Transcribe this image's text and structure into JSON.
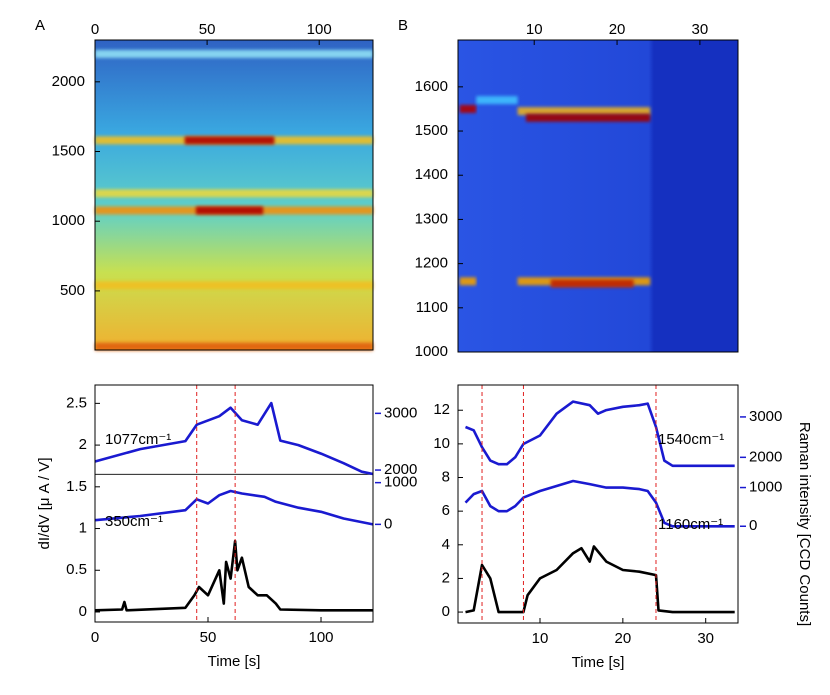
{
  "chart_data": [
    {
      "type": "heatmap",
      "label": "A",
      "xlim": [
        0,
        124
      ],
      "xticks": [
        0,
        50,
        100
      ],
      "ylim": [
        76,
        2300
      ],
      "yticks": [
        500,
        1000,
        1500,
        2000
      ],
      "bands": [
        {
          "y": 2200,
          "x": [
            0,
            124
          ],
          "color": "#8fe0f5"
        },
        {
          "y": 1580,
          "x": [
            0,
            124
          ],
          "color": "#f0c020"
        },
        {
          "y": 1580,
          "x": [
            40,
            80
          ],
          "color": "#b00000"
        },
        {
          "y": 1200,
          "x": [
            0,
            124
          ],
          "color": "#e8d840"
        },
        {
          "y": 1077,
          "x": [
            0,
            124
          ],
          "color": "#f09010"
        },
        {
          "y": 1077,
          "x": [
            45,
            75
          ],
          "color": "#b00000"
        },
        {
          "y": 540,
          "x": [
            0,
            124
          ],
          "color": "#f0c020"
        },
        {
          "y": 100,
          "x": [
            0,
            124
          ],
          "color": "#e06010"
        }
      ]
    },
    {
      "type": "heatmap",
      "label": "B",
      "xlim": [
        0.8,
        34.6
      ],
      "xticks": [
        10,
        20,
        30
      ],
      "ylim": [
        1000,
        1706
      ],
      "yticks": [
        1000,
        1100,
        1200,
        1300,
        1400,
        1500,
        1600
      ],
      "bands": [
        {
          "y": 1550,
          "x": [
            1,
            3
          ],
          "color": "#b00000"
        },
        {
          "y": 1570,
          "x": [
            3,
            8
          ],
          "color": "#40c0ff"
        },
        {
          "y": 1545,
          "x": [
            8,
            24
          ],
          "color": "#e8b020"
        },
        {
          "y": 1530,
          "x": [
            9,
            24
          ],
          "color": "#a00000"
        },
        {
          "y": 1160,
          "x": [
            1,
            3
          ],
          "color": "#f0a000"
        },
        {
          "y": 1160,
          "x": [
            8,
            24
          ],
          "color": "#f0a000"
        },
        {
          "y": 1155,
          "x": [
            12,
            22
          ],
          "color": "#c02000"
        }
      ]
    },
    {
      "type": "line",
      "xlabel": "Time [s]",
      "ylabel": "dI/dV [μ A / V]",
      "xlim": [
        0,
        123
      ],
      "xticks": [
        0,
        50,
        100
      ],
      "ylim": [
        -0.12,
        2.72
      ],
      "yticks": [
        0,
        0.5,
        1,
        1.5,
        2,
        2.5
      ],
      "y2lim": [
        -680,
        3500
      ],
      "y2ticks": [
        2000,
        3000
      ],
      "y3lim": [
        -2340,
        3340
      ],
      "y3ticks": [
        0,
        1000
      ],
      "vlines": [
        45,
        62
      ],
      "hlines": [
        1.65
      ],
      "series": [
        {
          "name": "1077cm⁻¹",
          "color": "#1a1ad0",
          "axis": "y2",
          "x": [
            0,
            20,
            40,
            45,
            55,
            60,
            65,
            72,
            78,
            82,
            90,
            100,
            110,
            118,
            123
          ],
          "values": [
            2150,
            2370,
            2510,
            2800,
            2950,
            3100,
            2880,
            2800,
            3180,
            2520,
            2440,
            2290,
            2120,
            1970,
            1930
          ]
        },
        {
          "name": "350cm⁻¹",
          "color": "#1a1ad0",
          "axis": "y3",
          "x": [
            0,
            20,
            40,
            45,
            50,
            55,
            60,
            65,
            75,
            80,
            90,
            100,
            110,
            123
          ],
          "values": [
            100,
            200,
            340,
            600,
            500,
            700,
            800,
            740,
            660,
            540,
            400,
            300,
            140,
            0
          ]
        },
        {
          "color": "#000000",
          "x": [
            0,
            12,
            13,
            14,
            40,
            44,
            46,
            50,
            55,
            57,
            58,
            60,
            62,
            63,
            65,
            68,
            72,
            76,
            80,
            82,
            100,
            123
          ],
          "values": [
            0.02,
            0.03,
            0.12,
            0.02,
            0.05,
            0.2,
            0.3,
            0.2,
            0.5,
            0.1,
            0.6,
            0.4,
            0.85,
            0.5,
            0.65,
            0.3,
            0.2,
            0.2,
            0.1,
            0.03,
            0.02,
            0.02
          ]
        }
      ]
    },
    {
      "type": "line",
      "xlabel": "Time [s]",
      "y2label": "Raman intensity [CCD Counts]",
      "xlim": [
        0.1,
        33.9
      ],
      "xticks": [
        10,
        20,
        30
      ],
      "ylim": [
        -0.65,
        13.5
      ],
      "yticks": [
        0,
        2,
        4,
        6,
        8,
        10,
        12
      ],
      "y2lim": [
        -2100,
        3790
      ],
      "y2ticks": [
        2000,
        3000
      ],
      "y3lim": [
        -2500,
        3650
      ],
      "y3ticks": [
        0,
        1000
      ],
      "vlines": [
        3,
        8,
        24
      ],
      "series": [
        {
          "name": "1540cm⁻¹",
          "color": "#1a1ad0",
          "axis": "y2",
          "x": [
            1,
            2,
            3,
            4,
            5,
            6,
            7,
            8,
            10,
            12,
            14,
            16,
            17,
            18,
            20,
            22,
            23,
            24,
            25,
            26,
            33.5
          ],
          "values": [
            2750,
            2670,
            2250,
            1920,
            1830,
            1830,
            2000,
            2330,
            2540,
            3080,
            3380,
            3290,
            3080,
            3170,
            3250,
            3290,
            3330,
            2750,
            1920,
            1790,
            1790
          ]
        },
        {
          "name": "1160cm⁻¹",
          "color": "#1a1ad0",
          "axis": "y3",
          "x": [
            1,
            2,
            3,
            4,
            5,
            6,
            7,
            8,
            10,
            12,
            14,
            16,
            18,
            20,
            22,
            23,
            24,
            25,
            26,
            33.5
          ],
          "values": [
            610,
            830,
            910,
            520,
            390,
            390,
            520,
            740,
            910,
            1040,
            1170,
            1090,
            1000,
            1000,
            960,
            910,
            610,
            90,
            0,
            0
          ]
        },
        {
          "color": "#000000",
          "x": [
            1,
            2,
            3,
            4,
            5,
            8,
            8.5,
            10,
            12,
            14,
            15,
            16,
            16.5,
            18,
            20,
            22,
            24,
            24.3,
            26,
            33.5
          ],
          "values": [
            0,
            0.1,
            2.8,
            2,
            0,
            0,
            1,
            2,
            2.5,
            3.5,
            3.8,
            3,
            3.9,
            3,
            2.5,
            2.4,
            2.2,
            0.1,
            0,
            0
          ]
        }
      ]
    }
  ]
}
